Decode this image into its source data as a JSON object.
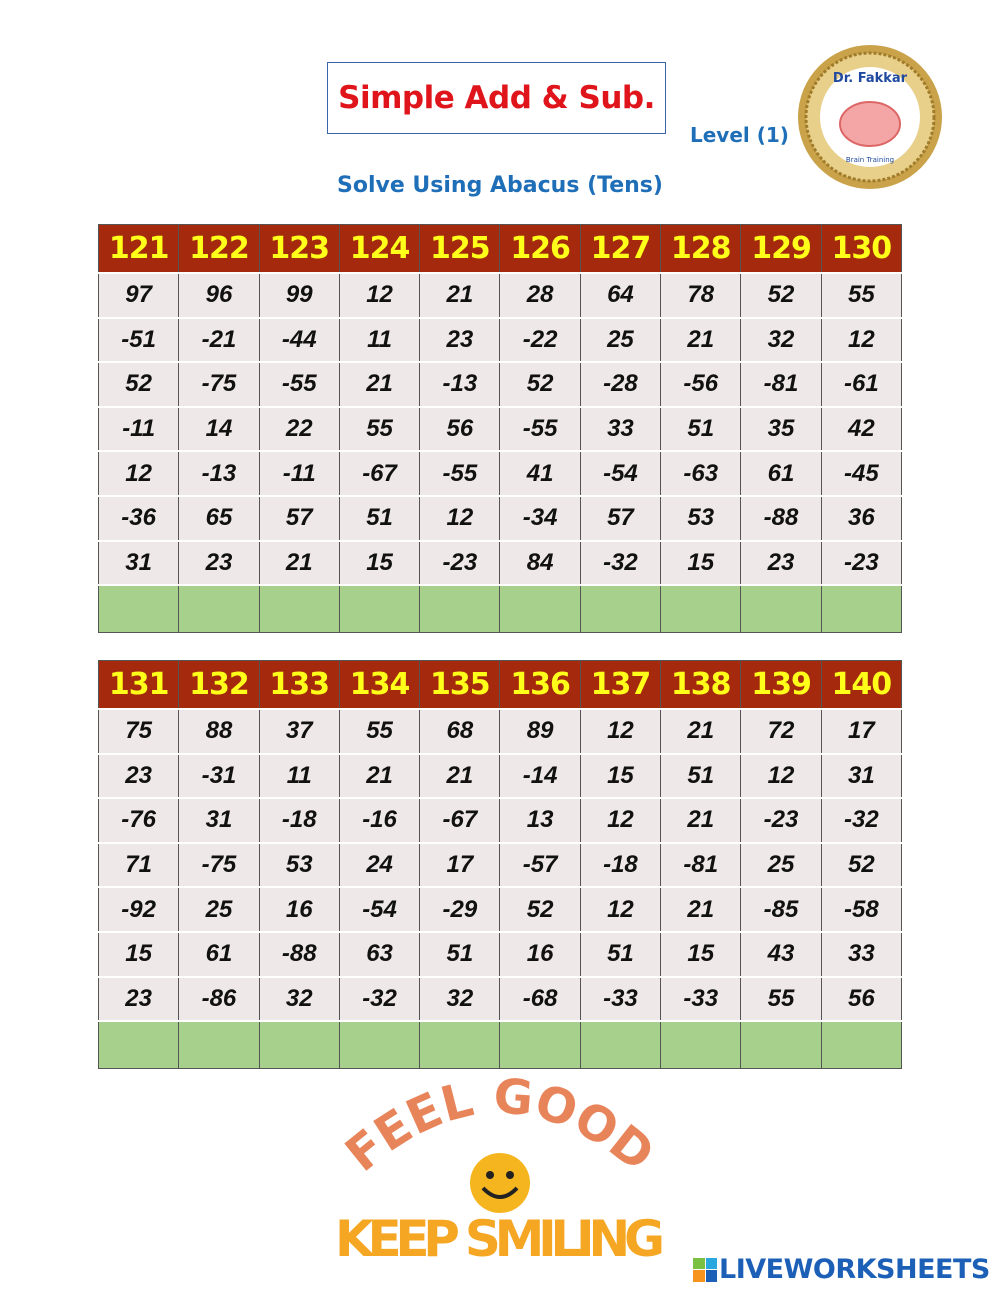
{
  "header": {
    "title": "Simple Add & Sub.",
    "level": "Level (1)",
    "subtitle": "Solve Using Abacus (Tens)",
    "logo_text": "Dr. Fakkar Brain Training & Development"
  },
  "tables": [
    {
      "headers": [
        "121",
        "122",
        "123",
        "124",
        "125",
        "126",
        "127",
        "128",
        "129",
        "130"
      ],
      "rows": [
        [
          "97",
          "96",
          "99",
          "12",
          "21",
          "28",
          "64",
          "78",
          "52",
          "55"
        ],
        [
          "-51",
          "-21",
          "-44",
          "11",
          "23",
          "-22",
          "25",
          "21",
          "32",
          "12"
        ],
        [
          "52",
          "-75",
          "-55",
          "21",
          "-13",
          "52",
          "-28",
          "-56",
          "-81",
          "-61"
        ],
        [
          "-11",
          "14",
          "22",
          "55",
          "56",
          "-55",
          "33",
          "51",
          "35",
          "42"
        ],
        [
          "12",
          "-13",
          "-11",
          "-67",
          "-55",
          "41",
          "-54",
          "-63",
          "61",
          "-45"
        ],
        [
          "-36",
          "65",
          "57",
          "51",
          "12",
          "-34",
          "57",
          "53",
          "-88",
          "36"
        ],
        [
          "31",
          "23",
          "21",
          "15",
          "-23",
          "84",
          "-32",
          "15",
          "23",
          "-23"
        ]
      ]
    },
    {
      "headers": [
        "131",
        "132",
        "133",
        "134",
        "135",
        "136",
        "137",
        "138",
        "139",
        "140"
      ],
      "rows": [
        [
          "75",
          "88",
          "37",
          "55",
          "68",
          "89",
          "12",
          "21",
          "72",
          "17"
        ],
        [
          "23",
          "-31",
          "11",
          "21",
          "21",
          "-14",
          "15",
          "51",
          "12",
          "31"
        ],
        [
          "-76",
          "31",
          "-18",
          "-16",
          "-67",
          "13",
          "12",
          "21",
          "-23",
          "-32"
        ],
        [
          "71",
          "-75",
          "53",
          "24",
          "17",
          "-57",
          "-18",
          "-81",
          "25",
          "52"
        ],
        [
          "-92",
          "25",
          "16",
          "-54",
          "-29",
          "52",
          "12",
          "21",
          "-85",
          "-58"
        ],
        [
          "15",
          "61",
          "-88",
          "63",
          "51",
          "16",
          "51",
          "15",
          "43",
          "33"
        ],
        [
          "23",
          "-86",
          "32",
          "-32",
          "32",
          "-68",
          "-33",
          "-33",
          "55",
          "56"
        ]
      ]
    }
  ],
  "footer": {
    "image_text_top": "FEEL GOOD",
    "image_text_bottom": "KEEP SMILING",
    "brand": "LIVEWORKSHEETS"
  },
  "colors": {
    "header_bg": "#a52a0d",
    "header_text": "#ffff1a",
    "cell_bg": "#efe8e8",
    "answer_bg": "#a6d08c",
    "title_red": "#e0141b",
    "accent_blue": "#1f6fb8"
  }
}
